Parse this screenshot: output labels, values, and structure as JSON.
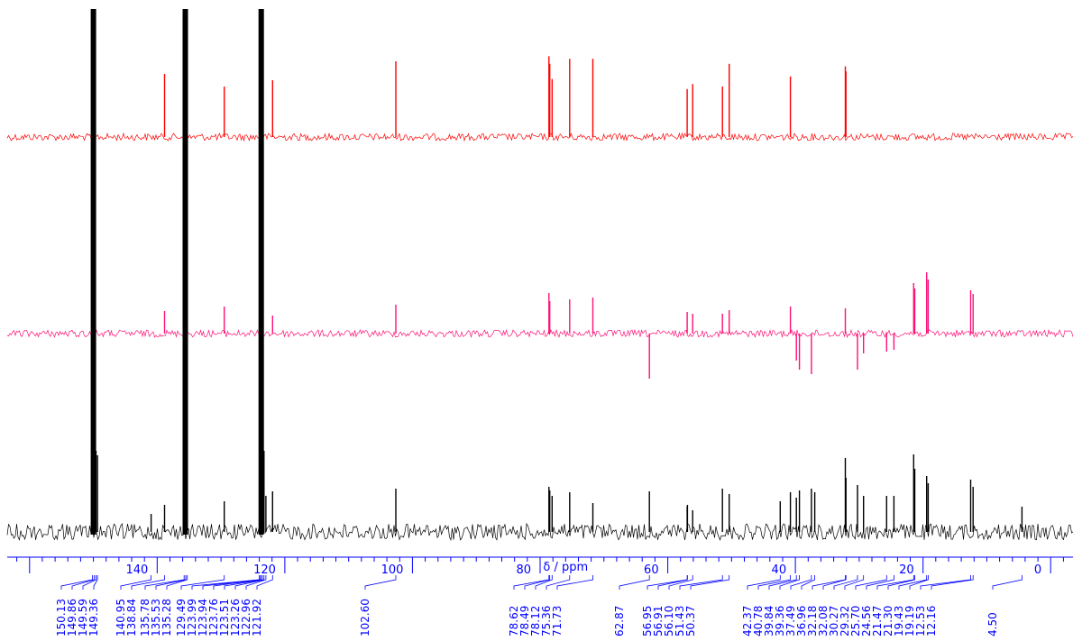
{
  "chart_data": {
    "type": "line",
    "title": "",
    "xlabel": "δ / ppm",
    "ylabel": "",
    "xlim": [
      163.5,
      -3.5
    ],
    "reversed_x": true,
    "grid": false,
    "legend": "none",
    "x_ticks": [
      {
        "value": 140,
        "label": "140"
      },
      {
        "value": 120,
        "label": "120"
      },
      {
        "value": 100,
        "label": "100"
      },
      {
        "value": 80,
        "label": "80"
      },
      {
        "value": 60,
        "label": "60"
      },
      {
        "value": 40,
        "label": "40"
      },
      {
        "value": 20,
        "label": "20"
      },
      {
        "value": 0,
        "label": "0"
      }
    ],
    "series": [
      {
        "name": "",
        "color": "#ff0000",
        "peaks": [
          {
            "x": 150.13,
            "y": 90
          },
          {
            "x": 149.86,
            "y": 40
          },
          {
            "x": 138.84,
            "y": 50
          },
          {
            "x": 135.78,
            "y": 90
          },
          {
            "x": 135.53,
            "y": 100
          },
          {
            "x": 129.49,
            "y": 40
          },
          {
            "x": 123.94,
            "y": 100
          },
          {
            "x": 123.76,
            "y": 100
          },
          {
            "x": 123.51,
            "y": 90
          },
          {
            "x": 121.92,
            "y": 45
          },
          {
            "x": 102.6,
            "y": 60
          },
          {
            "x": 78.62,
            "y": 64
          },
          {
            "x": 78.49,
            "y": 58
          },
          {
            "x": 78.12,
            "y": 46
          },
          {
            "x": 75.36,
            "y": 62
          },
          {
            "x": 71.73,
            "y": 62
          },
          {
            "x": 56.95,
            "y": 38
          },
          {
            "x": 56.1,
            "y": 42
          },
          {
            "x": 51.43,
            "y": 40
          },
          {
            "x": 50.37,
            "y": 58
          },
          {
            "x": 40.78,
            "y": 48
          },
          {
            "x": 32.18,
            "y": 56
          },
          {
            "x": 32.08,
            "y": 52
          }
        ]
      },
      {
        "name": "",
        "color": "#ff1177",
        "peaks": [
          {
            "x": 150.13,
            "y": 50
          },
          {
            "x": 149.86,
            "y": 38
          },
          {
            "x": 138.84,
            "y": 25
          },
          {
            "x": 135.78,
            "y": 70
          },
          {
            "x": 135.53,
            "y": 60
          },
          {
            "x": 129.49,
            "y": 30
          },
          {
            "x": 123.94,
            "y": 100
          },
          {
            "x": 123.76,
            "y": 90
          },
          {
            "x": 123.51,
            "y": 60
          },
          {
            "x": 121.92,
            "y": 20
          },
          {
            "x": 102.6,
            "y": 32
          },
          {
            "x": 78.62,
            "y": 45
          },
          {
            "x": 78.49,
            "y": 36
          },
          {
            "x": 75.36,
            "y": 38
          },
          {
            "x": 71.73,
            "y": 40
          },
          {
            "x": 62.87,
            "y": -50
          },
          {
            "x": 56.95,
            "y": 24
          },
          {
            "x": 56.1,
            "y": 22
          },
          {
            "x": 51.43,
            "y": 22
          },
          {
            "x": 50.37,
            "y": 26
          },
          {
            "x": 40.78,
            "y": 30
          },
          {
            "x": 39.84,
            "y": -30
          },
          {
            "x": 39.36,
            "y": -40
          },
          {
            "x": 37.49,
            "y": -45
          },
          {
            "x": 32.18,
            "y": 28
          },
          {
            "x": 30.27,
            "y": -40
          },
          {
            "x": 29.32,
            "y": -22
          },
          {
            "x": 25.7,
            "y": -20
          },
          {
            "x": 24.56,
            "y": -18
          },
          {
            "x": 21.47,
            "y": 56
          },
          {
            "x": 21.3,
            "y": 50
          },
          {
            "x": 19.43,
            "y": 68
          },
          {
            "x": 19.19,
            "y": 60
          },
          {
            "x": 12.53,
            "y": 48
          },
          {
            "x": 12.16,
            "y": 44
          }
        ]
      },
      {
        "name": "",
        "color": "#000000",
        "peaks": [
          {
            "x": 150.13,
            "y": 100
          },
          {
            "x": 149.86,
            "y": 100
          },
          {
            "x": 149.59,
            "y": 90
          },
          {
            "x": 149.36,
            "y": 85
          },
          {
            "x": 140.95,
            "y": 20
          },
          {
            "x": 138.84,
            "y": 30
          },
          {
            "x": 135.78,
            "y": 100
          },
          {
            "x": 135.53,
            "y": 100
          },
          {
            "x": 135.28,
            "y": 90
          },
          {
            "x": 129.49,
            "y": 34
          },
          {
            "x": 123.94,
            "y": 100
          },
          {
            "x": 123.76,
            "y": 100
          },
          {
            "x": 123.51,
            "y": 100
          },
          {
            "x": 123.26,
            "y": 90
          },
          {
            "x": 122.96,
            "y": 40
          },
          {
            "x": 121.92,
            "y": 45
          },
          {
            "x": 102.6,
            "y": 48
          },
          {
            "x": 78.62,
            "y": 50
          },
          {
            "x": 78.49,
            "y": 46
          },
          {
            "x": 78.12,
            "y": 40
          },
          {
            "x": 75.36,
            "y": 44
          },
          {
            "x": 71.73,
            "y": 32
          },
          {
            "x": 62.87,
            "y": 45
          },
          {
            "x": 56.95,
            "y": 28
          },
          {
            "x": 56.91,
            "y": 30
          },
          {
            "x": 56.1,
            "y": 24
          },
          {
            "x": 51.43,
            "y": 48
          },
          {
            "x": 50.37,
            "y": 42
          },
          {
            "x": 42.37,
            "y": 34
          },
          {
            "x": 40.78,
            "y": 44
          },
          {
            "x": 39.84,
            "y": 38
          },
          {
            "x": 39.36,
            "y": 46
          },
          {
            "x": 37.49,
            "y": 48
          },
          {
            "x": 36.96,
            "y": 44
          },
          {
            "x": 32.18,
            "y": 82
          },
          {
            "x": 32.08,
            "y": 60
          },
          {
            "x": 30.27,
            "y": 52
          },
          {
            "x": 29.32,
            "y": 40
          },
          {
            "x": 25.7,
            "y": 40
          },
          {
            "x": 24.56,
            "y": 40
          },
          {
            "x": 21.47,
            "y": 86
          },
          {
            "x": 21.3,
            "y": 70
          },
          {
            "x": 19.43,
            "y": 62
          },
          {
            "x": 19.19,
            "y": 54
          },
          {
            "x": 12.53,
            "y": 58
          },
          {
            "x": 12.16,
            "y": 50
          },
          {
            "x": 4.5,
            "y": 28
          }
        ]
      }
    ],
    "peak_labels": [
      "150.13",
      "149.86",
      "149.59",
      "149.36",
      "140.95",
      "138.84",
      "135.78",
      "135.53",
      "135.28",
      "129.49",
      "123.99",
      "123.94",
      "123.76",
      "123.51",
      "123.26",
      "122.96",
      "121.92",
      "102.60",
      "78.62",
      "78.49",
      "78.12",
      "75.36",
      "71.73",
      "62.87",
      "56.95",
      "56.91",
      "56.10",
      "51.43",
      "50.37",
      "42.37",
      "40.78",
      "39.84",
      "39.36",
      "37.49",
      "36.96",
      "32.18",
      "32.08",
      "30.27",
      "29.32",
      "25.70",
      "24.56",
      "21.47",
      "21.30",
      "19.43",
      "19.19",
      "12.53",
      "12.16",
      "4.50"
    ],
    "axis_color": "#0000ff"
  }
}
